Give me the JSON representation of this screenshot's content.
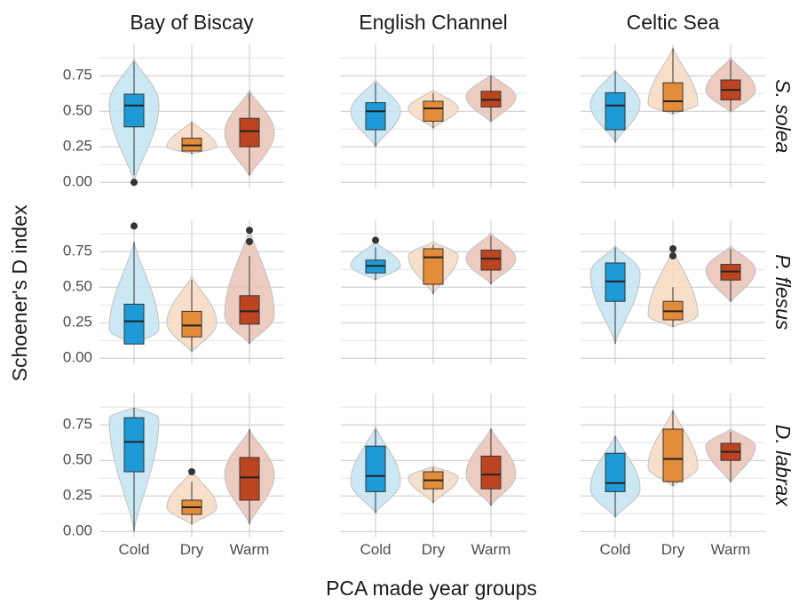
{
  "chart_data": {
    "type": "violin",
    "y_label": "Schoener's D index",
    "x_label": "PCA made year groups",
    "categories": [
      "Cold",
      "Dry",
      "Warm"
    ],
    "box_colors": [
      "#1e9bd7",
      "#e38c3a",
      "#bd4420"
    ],
    "violin_colors": [
      "#c6e6f3",
      "#f8dcc5",
      "#eac7bb"
    ],
    "ylim": [
      -0.04,
      0.97
    ],
    "yticks": [
      {
        "value": 0,
        "label": "0.00"
      },
      {
        "value": 0.25,
        "label": "0.25"
      },
      {
        "value": 0.5,
        "label": "0.50"
      },
      {
        "value": 0.75,
        "label": "0.75"
      }
    ],
    "grid": true,
    "columns": [
      "Bay of Biscay",
      "English Channel",
      "Celtic Sea"
    ],
    "rows": [
      {
        "name": "S. solea",
        "panels": [
          [
            {
              "whisker_low": 0.05,
              "q1": 0.39,
              "median": 0.54,
              "q3": 0.62,
              "whisker_high": 0.85,
              "outliers": [
                0.0
              ],
              "violin_min": 0.0,
              "violin_peak": 0.55,
              "violin_max": 0.87
            },
            {
              "whisker_low": 0.2,
              "q1": 0.22,
              "median": 0.26,
              "q3": 0.31,
              "whisker_high": 0.42,
              "outliers": [],
              "violin_min": 0.2,
              "violin_peak": 0.25,
              "violin_max": 0.43
            },
            {
              "whisker_low": 0.05,
              "q1": 0.25,
              "median": 0.36,
              "q3": 0.45,
              "whisker_high": 0.63,
              "outliers": [],
              "violin_min": 0.04,
              "violin_peak": 0.35,
              "violin_max": 0.65
            }
          ],
          [
            {
              "whisker_low": 0.25,
              "q1": 0.37,
              "median": 0.5,
              "q3": 0.56,
              "whisker_high": 0.7,
              "outliers": [],
              "violin_min": 0.25,
              "violin_peak": 0.5,
              "violin_max": 0.72
            },
            {
              "whisker_low": 0.38,
              "q1": 0.43,
              "median": 0.52,
              "q3": 0.57,
              "whisker_high": 0.63,
              "outliers": [],
              "violin_min": 0.38,
              "violin_peak": 0.52,
              "violin_max": 0.65
            },
            {
              "whisker_low": 0.43,
              "q1": 0.53,
              "median": 0.58,
              "q3": 0.64,
              "whisker_high": 0.75,
              "outliers": [],
              "violin_min": 0.42,
              "violin_peak": 0.6,
              "violin_max": 0.76
            }
          ],
          [
            {
              "whisker_low": 0.28,
              "q1": 0.37,
              "median": 0.54,
              "q3": 0.63,
              "whisker_high": 0.78,
              "outliers": [],
              "violin_min": 0.28,
              "violin_peak": 0.55,
              "violin_max": 0.79
            },
            {
              "whisker_low": 0.48,
              "q1": 0.5,
              "median": 0.57,
              "q3": 0.7,
              "whisker_high": 0.94,
              "outliers": [],
              "violin_min": 0.48,
              "violin_peak": 0.55,
              "violin_max": 0.95
            },
            {
              "whisker_low": 0.5,
              "q1": 0.58,
              "median": 0.65,
              "q3": 0.72,
              "whisker_high": 0.86,
              "outliers": [],
              "violin_min": 0.49,
              "violin_peak": 0.65,
              "violin_max": 0.88
            }
          ]
        ]
      },
      {
        "name": "P. flesus",
        "panels": [
          [
            {
              "whisker_low": 0.1,
              "q1": 0.1,
              "median": 0.26,
              "q3": 0.38,
              "whisker_high": 0.82,
              "outliers": [
                0.93
              ],
              "violin_min": 0.1,
              "violin_peak": 0.2,
              "violin_max": 0.82
            },
            {
              "whisker_low": 0.05,
              "q1": 0.15,
              "median": 0.23,
              "q3": 0.33,
              "whisker_high": 0.55,
              "outliers": [],
              "violin_min": 0.04,
              "violin_peak": 0.25,
              "violin_max": 0.58
            },
            {
              "whisker_low": 0.1,
              "q1": 0.24,
              "median": 0.33,
              "q3": 0.44,
              "whisker_high": 0.72,
              "outliers": [
                0.82,
                0.9
              ],
              "violin_min": 0.1,
              "violin_peak": 0.3,
              "violin_max": 0.92
            }
          ],
          [
            {
              "whisker_low": 0.55,
              "q1": 0.6,
              "median": 0.65,
              "q3": 0.69,
              "whisker_high": 0.78,
              "outliers": [
                0.83
              ],
              "violin_min": 0.55,
              "violin_peak": 0.65,
              "violin_max": 0.82
            },
            {
              "whisker_low": 0.45,
              "q1": 0.52,
              "median": 0.71,
              "q3": 0.77,
              "whisker_high": 0.8,
              "outliers": [],
              "violin_min": 0.45,
              "violin_peak": 0.72,
              "violin_max": 0.82
            },
            {
              "whisker_low": 0.52,
              "q1": 0.62,
              "median": 0.7,
              "q3": 0.76,
              "whisker_high": 0.86,
              "outliers": [],
              "violin_min": 0.52,
              "violin_peak": 0.7,
              "violin_max": 0.88
            }
          ],
          [
            {
              "whisker_low": 0.1,
              "q1": 0.4,
              "median": 0.54,
              "q3": 0.67,
              "whisker_high": 0.78,
              "outliers": [],
              "violin_min": 0.1,
              "violin_peak": 0.6,
              "violin_max": 0.79
            },
            {
              "whisker_low": 0.22,
              "q1": 0.27,
              "median": 0.33,
              "q3": 0.4,
              "whisker_high": 0.5,
              "outliers": [
                0.72,
                0.77
              ],
              "violin_min": 0.22,
              "violin_peak": 0.3,
              "violin_max": 0.78
            },
            {
              "whisker_low": 0.4,
              "q1": 0.55,
              "median": 0.61,
              "q3": 0.66,
              "whisker_high": 0.77,
              "outliers": [],
              "violin_min": 0.39,
              "violin_peak": 0.62,
              "violin_max": 0.79
            }
          ]
        ]
      },
      {
        "name": "D. labrax",
        "panels": [
          [
            {
              "whisker_low": 0.0,
              "q1": 0.42,
              "median": 0.63,
              "q3": 0.8,
              "whisker_high": 0.87,
              "outliers": [],
              "violin_min": 0.0,
              "violin_peak": 0.8,
              "violin_max": 0.87
            },
            {
              "whisker_low": 0.05,
              "q1": 0.12,
              "median": 0.17,
              "q3": 0.22,
              "whisker_high": 0.35,
              "outliers": [
                0.42
              ],
              "violin_min": 0.05,
              "violin_peak": 0.17,
              "violin_max": 0.43
            },
            {
              "whisker_low": 0.05,
              "q1": 0.22,
              "median": 0.38,
              "q3": 0.52,
              "whisker_high": 0.72,
              "outliers": [],
              "violin_min": 0.05,
              "violin_peak": 0.4,
              "violin_max": 0.72
            }
          ],
          [
            {
              "whisker_low": 0.13,
              "q1": 0.28,
              "median": 0.39,
              "q3": 0.6,
              "whisker_high": 0.72,
              "outliers": [],
              "violin_min": 0.13,
              "violin_peak": 0.35,
              "violin_max": 0.74
            },
            {
              "whisker_low": 0.2,
              "q1": 0.3,
              "median": 0.36,
              "q3": 0.42,
              "whisker_high": 0.45,
              "outliers": [],
              "violin_min": 0.2,
              "violin_peak": 0.38,
              "violin_max": 0.46
            },
            {
              "whisker_low": 0.18,
              "q1": 0.3,
              "median": 0.4,
              "q3": 0.53,
              "whisker_high": 0.72,
              "outliers": [],
              "violin_min": 0.18,
              "violin_peak": 0.4,
              "violin_max": 0.73
            }
          ],
          [
            {
              "whisker_low": 0.1,
              "q1": 0.28,
              "median": 0.34,
              "q3": 0.55,
              "whisker_high": 0.67,
              "outliers": [],
              "violin_min": 0.1,
              "violin_peak": 0.3,
              "violin_max": 0.68
            },
            {
              "whisker_low": 0.32,
              "q1": 0.35,
              "median": 0.51,
              "q3": 0.72,
              "whisker_high": 0.85,
              "outliers": [],
              "violin_min": 0.32,
              "violin_peak": 0.45,
              "violin_max": 0.86
            },
            {
              "whisker_low": 0.35,
              "q1": 0.5,
              "median": 0.56,
              "q3": 0.62,
              "whisker_high": 0.7,
              "outliers": [],
              "violin_min": 0.34,
              "violin_peak": 0.6,
              "violin_max": 0.72
            }
          ]
        ]
      }
    ]
  }
}
